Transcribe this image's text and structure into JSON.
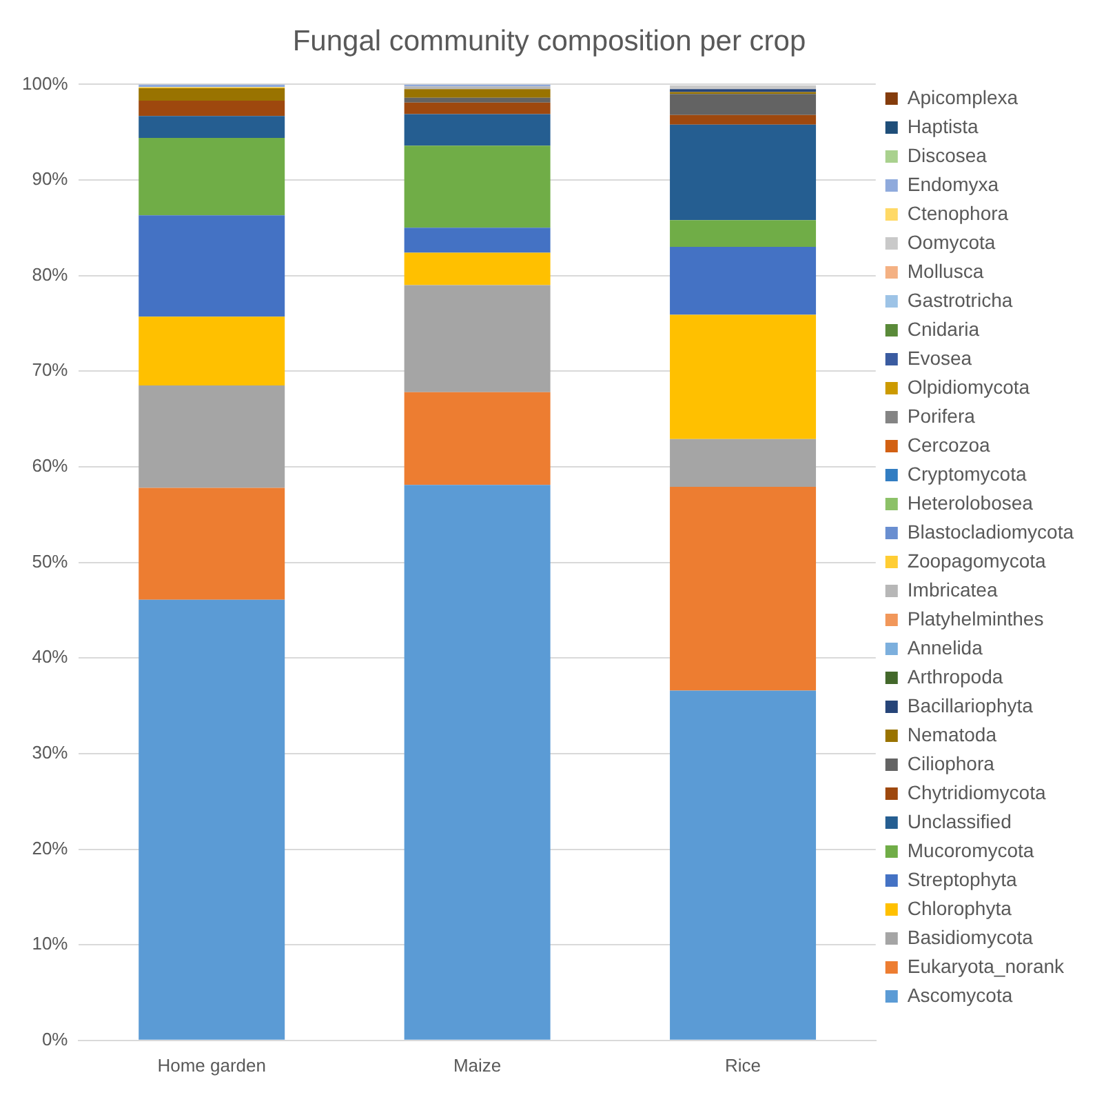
{
  "chart_data": {
    "type": "bar",
    "stacked": true,
    "title": "Fungal community composition per crop",
    "categories": [
      "Home garden",
      "Maize",
      "Rice"
    ],
    "ylim": [
      0,
      100
    ],
    "yticks": [
      {
        "value": 0,
        "label": "0%"
      },
      {
        "value": 10,
        "label": "10%"
      },
      {
        "value": 20,
        "label": "20%"
      },
      {
        "value": 30,
        "label": "30%"
      },
      {
        "value": 40,
        "label": "40%"
      },
      {
        "value": 50,
        "label": "50%"
      },
      {
        "value": 60,
        "label": "60%"
      },
      {
        "value": 70,
        "label": "70%"
      },
      {
        "value": 80,
        "label": "80%"
      },
      {
        "value": 90,
        "label": "90%"
      },
      {
        "value": 100,
        "label": "100%"
      }
    ],
    "grid": "y",
    "legend": "right",
    "series": [
      {
        "name": "Ascomycota",
        "color": "#5b9bd5",
        "values": [
          46.1,
          58.1,
          36.6
        ]
      },
      {
        "name": "Eukaryota_norank",
        "color": "#ed7d31",
        "values": [
          11.7,
          9.7,
          21.3
        ]
      },
      {
        "name": "Basidiomycota",
        "color": "#a5a5a5",
        "values": [
          10.7,
          11.2,
          5.0
        ]
      },
      {
        "name": "Chlorophyta",
        "color": "#ffc000",
        "values": [
          7.2,
          3.4,
          13.0
        ]
      },
      {
        "name": "Streptophyta",
        "color": "#4472c4",
        "values": [
          10.6,
          2.6,
          7.1
        ]
      },
      {
        "name": "Mucoromycota",
        "color": "#70ad47",
        "values": [
          8.1,
          8.6,
          2.8
        ]
      },
      {
        "name": "Unclassified",
        "color": "#255e91",
        "values": [
          2.3,
          3.3,
          10.0
        ]
      },
      {
        "name": "Chytridiomycota",
        "color": "#9e480e",
        "values": [
          1.6,
          1.2,
          1.0
        ]
      },
      {
        "name": "Ciliophora",
        "color": "#636363",
        "values": [
          0,
          0.5,
          2.2
        ]
      },
      {
        "name": "Nematoda",
        "color": "#997300",
        "values": [
          1.3,
          0.9,
          0.2
        ]
      },
      {
        "name": "Bacillariophyta",
        "color": "#264478",
        "values": [
          0,
          0,
          0.3
        ]
      },
      {
        "name": "Arthropoda",
        "color": "#43682b",
        "values": [
          0,
          0,
          0
        ]
      },
      {
        "name": "Annelida",
        "color": "#7cafdd",
        "values": [
          0,
          0,
          0
        ]
      },
      {
        "name": "Platyhelminthes",
        "color": "#f1975a",
        "values": [
          0,
          0,
          0
        ]
      },
      {
        "name": "Imbricatea",
        "color": "#b7b7b7",
        "values": [
          0,
          0.3,
          0
        ]
      },
      {
        "name": "Zoopagomycota",
        "color": "#ffcd33",
        "values": [
          0.1,
          0,
          0
        ]
      },
      {
        "name": "Blastocladiomycota",
        "color": "#698ed0",
        "values": [
          0,
          0,
          0
        ]
      },
      {
        "name": "Heterolobosea",
        "color": "#8cc168",
        "values": [
          0,
          0,
          0
        ]
      },
      {
        "name": "Cryptomycota",
        "color": "#327dc2",
        "values": [
          0,
          0,
          0
        ]
      },
      {
        "name": "Cercozoa",
        "color": "#d26012",
        "values": [
          0,
          0,
          0
        ]
      },
      {
        "name": "Porifera",
        "color": "#848484",
        "values": [
          0,
          0,
          0
        ]
      },
      {
        "name": "Olpidiomycota",
        "color": "#cc9a00",
        "values": [
          0,
          0,
          0
        ]
      },
      {
        "name": "Evosea",
        "color": "#3a5ba0",
        "values": [
          0,
          0,
          0
        ]
      },
      {
        "name": "Cnidaria",
        "color": "#5a8a39",
        "values": [
          0,
          0,
          0
        ]
      },
      {
        "name": "Gastrotricha",
        "color": "#9dc3e6",
        "values": [
          0,
          0,
          0
        ]
      },
      {
        "name": "Mollusca",
        "color": "#f4b183",
        "values": [
          0,
          0,
          0
        ]
      },
      {
        "name": "Oomycota",
        "color": "#c9c9c9",
        "values": [
          0,
          0,
          0.4
        ]
      },
      {
        "name": "Ctenophora",
        "color": "#ffd966",
        "values": [
          0,
          0,
          0
        ]
      },
      {
        "name": "Endomyxa",
        "color": "#8faadc",
        "values": [
          0.3,
          0.2,
          0
        ]
      },
      {
        "name": "Discosea",
        "color": "#a9d18e",
        "values": [
          0,
          0,
          0
        ]
      },
      {
        "name": "Haptista",
        "color": "#1f4e79",
        "values": [
          0,
          0,
          0
        ]
      },
      {
        "name": "Apicomplexa",
        "color": "#843c0c",
        "values": [
          0,
          0,
          0
        ]
      }
    ]
  }
}
